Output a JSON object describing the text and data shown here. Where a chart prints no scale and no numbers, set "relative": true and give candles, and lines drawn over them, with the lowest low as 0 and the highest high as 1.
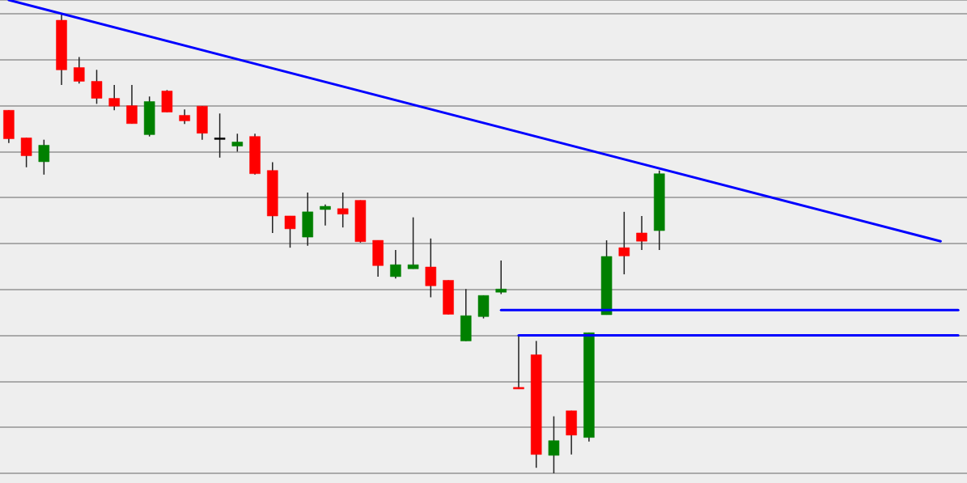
{
  "chart_data": {
    "type": "candlestick",
    "relative": true,
    "grid": "y",
    "marker": "none",
    "line_style": "solid",
    "categories": [
      null,
      null,
      null,
      null,
      null,
      null,
      null,
      null,
      null,
      null,
      null,
      null,
      null,
      null,
      null,
      null,
      null,
      null,
      null,
      null,
      null,
      null,
      null,
      null,
      null,
      null,
      null,
      null,
      null,
      null,
      null,
      null,
      null,
      null,
      null,
      null,
      null,
      null,
      null,
      null,
      null,
      null,
      null,
      null,
      null,
      null,
      null,
      null,
      null,
      null,
      null,
      null,
      null,
      null,
      null
    ],
    "series": [
      {
        "ohlc": [
          [
            0.79,
            0.79,
            0.719,
            0.728
          ],
          [
            0.73,
            0.73,
            0.666,
            0.691
          ],
          [
            0.678,
            0.726,
            0.65,
            0.714
          ],
          [
            0.986,
            1.0,
            0.845,
            0.878
          ],
          [
            0.883,
            0.906,
            0.848,
            0.853
          ],
          [
            0.853,
            0.878,
            0.804,
            0.816
          ],
          [
            0.816,
            0.845,
            0.79,
            0.799
          ],
          [
            0.8,
            0.845,
            0.761,
            0.761
          ],
          [
            0.737,
            0.82,
            0.733,
            0.809
          ],
          [
            0.832,
            0.834,
            0.786,
            0.786
          ],
          [
            0.779,
            0.792,
            0.76,
            0.767
          ],
          [
            0.799,
            0.799,
            0.726,
            0.74
          ],
          [
            0.73,
            0.783,
            0.687,
            0.73
          ],
          [
            0.712,
            0.739,
            0.7,
            0.721
          ],
          [
            0.733,
            0.739,
            0.65,
            0.652
          ],
          [
            0.659,
            0.677,
            0.523,
            0.56
          ],
          [
            0.56,
            0.56,
            0.491,
            0.532
          ],
          [
            0.514,
            0.611,
            0.495,
            0.569
          ],
          [
            0.574,
            0.585,
            0.539,
            0.581
          ],
          [
            0.576,
            0.611,
            0.535,
            0.564
          ],
          [
            0.594,
            0.594,
            0.502,
            0.504
          ],
          [
            0.507,
            0.507,
            0.428,
            0.452
          ],
          [
            0.428,
            0.486,
            0.424,
            0.454
          ],
          [
            0.445,
            0.557,
            0.445,
            0.454
          ],
          [
            0.449,
            0.511,
            0.383,
            0.408
          ],
          [
            0.42,
            0.42,
            0.346,
            0.346
          ],
          [
            0.288,
            0.401,
            0.288,
            0.343
          ],
          [
            0.341,
            0.387,
            0.337,
            0.387
          ],
          [
            0.394,
            0.463,
            0.39,
            0.401
          ],
          [
            0.187,
            0.299,
            0.184,
            0.184
          ],
          [
            0.258,
            0.288,
            0.012,
            0.041
          ],
          [
            0.039,
            0.124,
            0,
            0.071
          ],
          [
            0.136,
            0.136,
            0.041,
            0.083
          ],
          [
            0.078,
            0.306,
            0.069,
            0.306
          ],
          [
            0.345,
            0.507,
            0.345,
            0.472
          ],
          [
            0.491,
            0.569,
            0.433,
            0.473
          ],
          [
            0.523,
            0.56,
            0.486,
            0.505
          ],
          [
            0.528,
            0.659,
            0.486,
            0.652
          ],
          null,
          null,
          null,
          null,
          null,
          null,
          null,
          null,
          null,
          null,
          null,
          null,
          null,
          null,
          null,
          null,
          null
        ],
        "colors": [
          "#ff0000",
          "#ff0000",
          "#008000",
          "#ff0000",
          "#ff0000",
          "#ff0000",
          "#ff0000",
          "#ff0000",
          "#008000",
          "#ff0000",
          "#ff0000",
          "#ff0000",
          "#000000",
          "#008000",
          "#ff0000",
          "#ff0000",
          "#ff0000",
          "#008000",
          "#008000",
          "#ff0000",
          "#ff0000",
          "#ff0000",
          "#008000",
          "#008000",
          "#ff0000",
          "#ff0000",
          "#008000",
          "#008000",
          "#008000",
          "#ff0000",
          "#ff0000",
          "#008000",
          "#ff0000",
          "#008000",
          "#008000",
          "#ff0000",
          "#ff0000",
          "#008000",
          null,
          null,
          null,
          null,
          null,
          null,
          null,
          null,
          null,
          null,
          null,
          null,
          null,
          null,
          null,
          null,
          null
        ]
      },
      {
        "type": "line",
        "color": "#0000ff",
        "values": [
          1.03,
          null,
          null,
          null,
          null,
          null,
          null,
          null,
          null,
          null,
          null,
          null,
          null,
          null,
          null,
          null,
          null,
          null,
          null,
          null,
          null,
          null,
          null,
          null,
          null,
          null,
          null,
          null,
          null,
          null,
          null,
          null,
          null,
          null,
          null,
          null,
          null,
          null,
          null,
          null,
          null,
          null,
          null,
          null,
          null,
          null,
          null,
          null,
          null,
          null,
          null,
          null,
          null,
          0.505,
          null
        ]
      },
      {
        "type": "line",
        "color": "#0000ff",
        "values": [
          null,
          null,
          null,
          null,
          null,
          null,
          null,
          null,
          null,
          null,
          null,
          null,
          null,
          null,
          null,
          null,
          null,
          null,
          null,
          null,
          null,
          null,
          null,
          null,
          null,
          null,
          null,
          null,
          0.355,
          0.355,
          0.355,
          0.355,
          0.355,
          0.355,
          0.355,
          0.355,
          0.355,
          0.355,
          0.355,
          0.355,
          0.355,
          0.355,
          0.355,
          0.355,
          0.355,
          0.355,
          0.355,
          0.355,
          0.355,
          0.355,
          0.355,
          0.355,
          0.355,
          0.355,
          0.355
        ]
      },
      {
        "type": "line",
        "color": "#0000ff",
        "values": [
          null,
          null,
          null,
          null,
          null,
          null,
          null,
          null,
          null,
          null,
          null,
          null,
          null,
          null,
          null,
          null,
          null,
          null,
          null,
          null,
          null,
          null,
          null,
          null,
          null,
          null,
          null,
          null,
          null,
          0.3,
          0.3,
          0.3,
          0.3,
          0.3,
          0.3,
          0.3,
          0.3,
          0.3,
          0.3,
          0.3,
          0.3,
          0.3,
          0.3,
          0.3,
          0.3,
          0.3,
          0.3,
          0.3,
          0.3,
          0.3,
          0.3,
          0.3,
          0.3,
          0.3,
          0.3
        ]
      }
    ]
  }
}
